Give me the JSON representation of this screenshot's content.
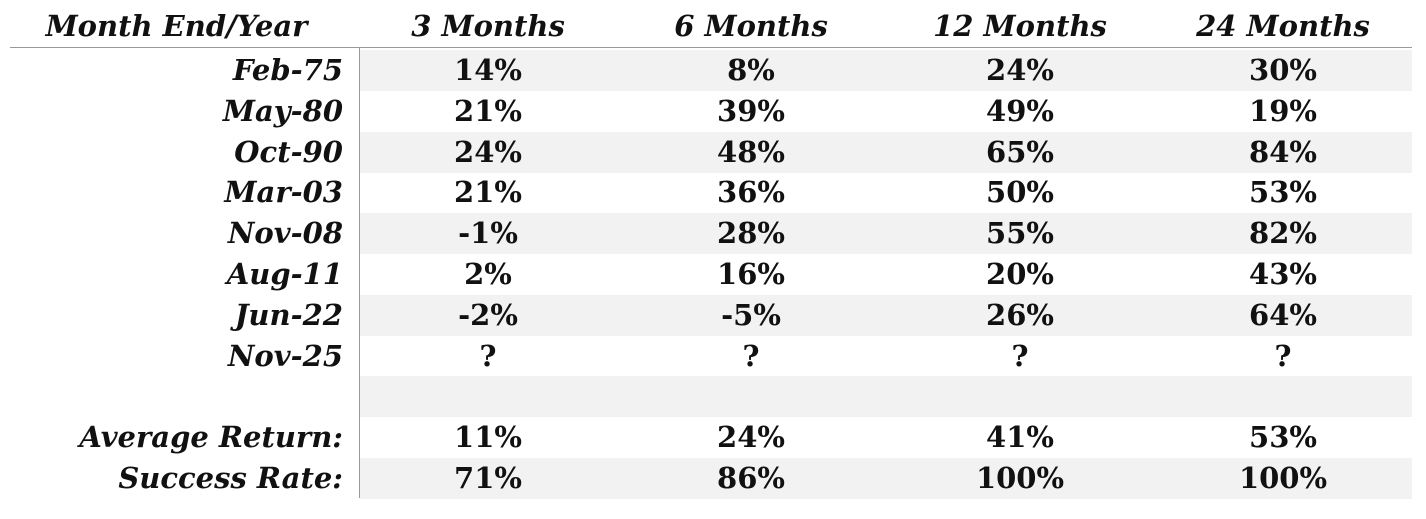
{
  "table": {
    "header": [
      "Month End/Year",
      "3 Months",
      "6 Months",
      "12 Months",
      "24 Months"
    ],
    "rows": [
      [
        "Feb-75",
        "14%",
        "8%",
        "24%",
        "30%"
      ],
      [
        "May-80",
        "21%",
        "39%",
        "49%",
        "19%"
      ],
      [
        "Oct-90",
        "24%",
        "48%",
        "65%",
        "84%"
      ],
      [
        "Mar-03",
        "21%",
        "36%",
        "50%",
        "53%"
      ],
      [
        "Nov-08",
        "-1%",
        "28%",
        "55%",
        "82%"
      ],
      [
        "Aug-11",
        "2%",
        "16%",
        "20%",
        "43%"
      ],
      [
        "Jun-22",
        "-2%",
        "-5%",
        "26%",
        "64%"
      ],
      [
        "Nov-25",
        "?",
        "?",
        "?",
        "?"
      ]
    ],
    "summary": [
      [
        "Average Return:",
        "11%",
        "24%",
        "41%",
        "53%"
      ],
      [
        "Success Rate:",
        "71%",
        "86%",
        "100%",
        "100%"
      ]
    ]
  }
}
